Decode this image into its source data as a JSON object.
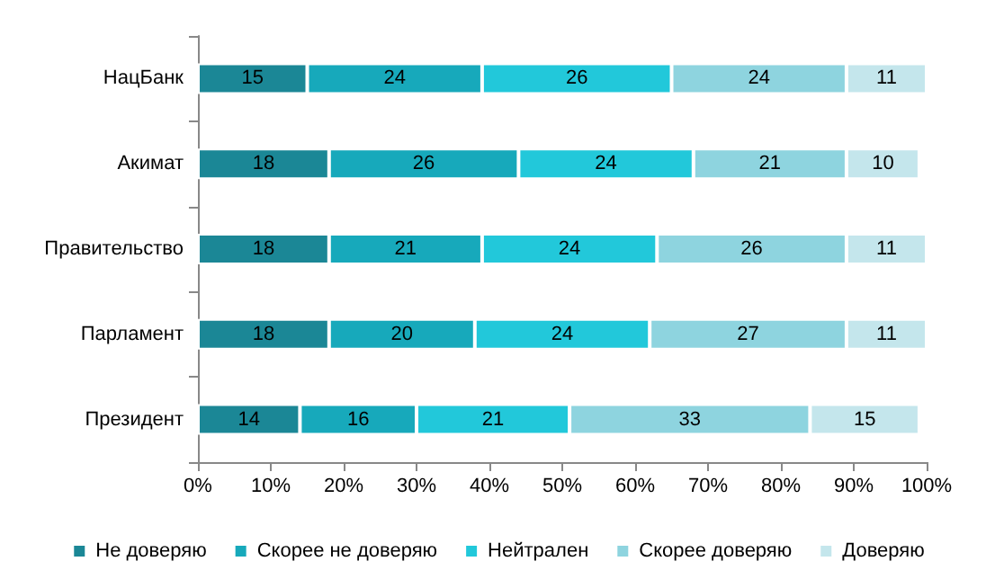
{
  "chart_data": {
    "type": "bar",
    "orientation": "horizontal",
    "stacked": true,
    "data_labels": true,
    "legend": "bottom",
    "grid": false,
    "categories": [
      "НацБанк",
      "Акимат",
      "Правительство",
      "Парламент",
      "Президент"
    ],
    "series": [
      {
        "name": "Не доверяю",
        "color": "#1b8796",
        "values": [
          15,
          18,
          18,
          18,
          14
        ]
      },
      {
        "name": "Скорее не доверяю",
        "color": "#17a9bb",
        "values": [
          24,
          26,
          21,
          20,
          16
        ]
      },
      {
        "name": "Нейтрален",
        "color": "#22c8da",
        "values": [
          26,
          24,
          24,
          24,
          21
        ]
      },
      {
        "name": "Скорее доверяю",
        "color": "#8ed4df",
        "values": [
          24,
          21,
          26,
          27,
          33
        ]
      },
      {
        "name": "Доверяю",
        "color": "#c4e6ec",
        "values": [
          11,
          10,
          11,
          11,
          15
        ]
      }
    ],
    "xlim": [
      0,
      100
    ],
    "xticks": [
      {
        "value": 0,
        "label": "0%"
      },
      {
        "value": 10,
        "label": "10%"
      },
      {
        "value": 20,
        "label": "20%"
      },
      {
        "value": 30,
        "label": "30%"
      },
      {
        "value": 40,
        "label": "40%"
      },
      {
        "value": 50,
        "label": "50%"
      },
      {
        "value": 60,
        "label": "60%"
      },
      {
        "value": 70,
        "label": "70%"
      },
      {
        "value": 80,
        "label": "80%"
      },
      {
        "value": 90,
        "label": "90%"
      },
      {
        "value": 100,
        "label": "100%"
      }
    ]
  }
}
